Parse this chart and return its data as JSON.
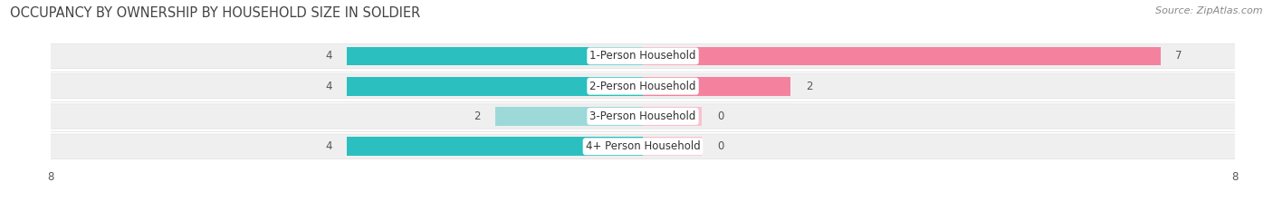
{
  "title": "OCCUPANCY BY OWNERSHIP BY HOUSEHOLD SIZE IN SOLDIER",
  "source": "Source: ZipAtlas.com",
  "categories": [
    "1-Person Household",
    "2-Person Household",
    "3-Person Household",
    "4+ Person Household"
  ],
  "owner_values": [
    4,
    4,
    2,
    4
  ],
  "renter_values": [
    7,
    2,
    0,
    0
  ],
  "owner_color_normal": "#2bbfbf",
  "owner_color_light": "#9dd9d9",
  "renter_color_normal": "#f4829e",
  "renter_color_light": "#f9c0d0",
  "row_bg_color": "#efefef",
  "row_line_color": "#e0e0e0",
  "xlim": [
    -8,
    8
  ],
  "bar_scale": 8,
  "title_fontsize": 10.5,
  "source_fontsize": 8,
  "label_fontsize": 8.5,
  "value_fontsize": 8.5,
  "tick_fontsize": 8.5,
  "legend_fontsize": 8.5,
  "background_color": "#ffffff",
  "text_color": "#555555",
  "bar_height": 0.62
}
